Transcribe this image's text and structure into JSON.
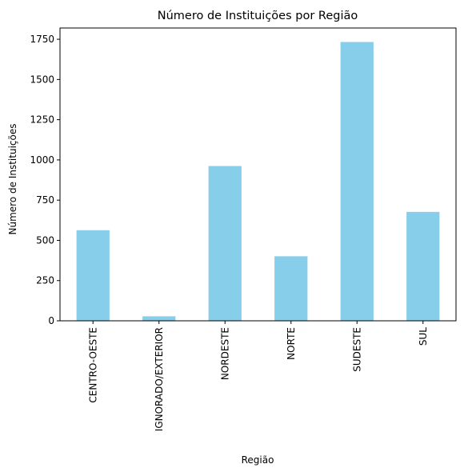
{
  "chart_data": {
    "type": "bar",
    "title": "Número de Instituições por Região",
    "xlabel": "Região",
    "ylabel": "Número de Instituições",
    "categories": [
      "CENTRO-OESTE",
      "IGNORADO/EXTERIOR",
      "NORDESTE",
      "NORTE",
      "SUDESTE",
      "SUL"
    ],
    "values": [
      563,
      28,
      962,
      401,
      1733,
      677
    ],
    "ylim": [
      0,
      1820
    ],
    "yticks": [
      0,
      250,
      500,
      750,
      1000,
      1250,
      1500,
      1750
    ],
    "bar_color": "#87ceeb",
    "grid": false,
    "legend": false
  }
}
